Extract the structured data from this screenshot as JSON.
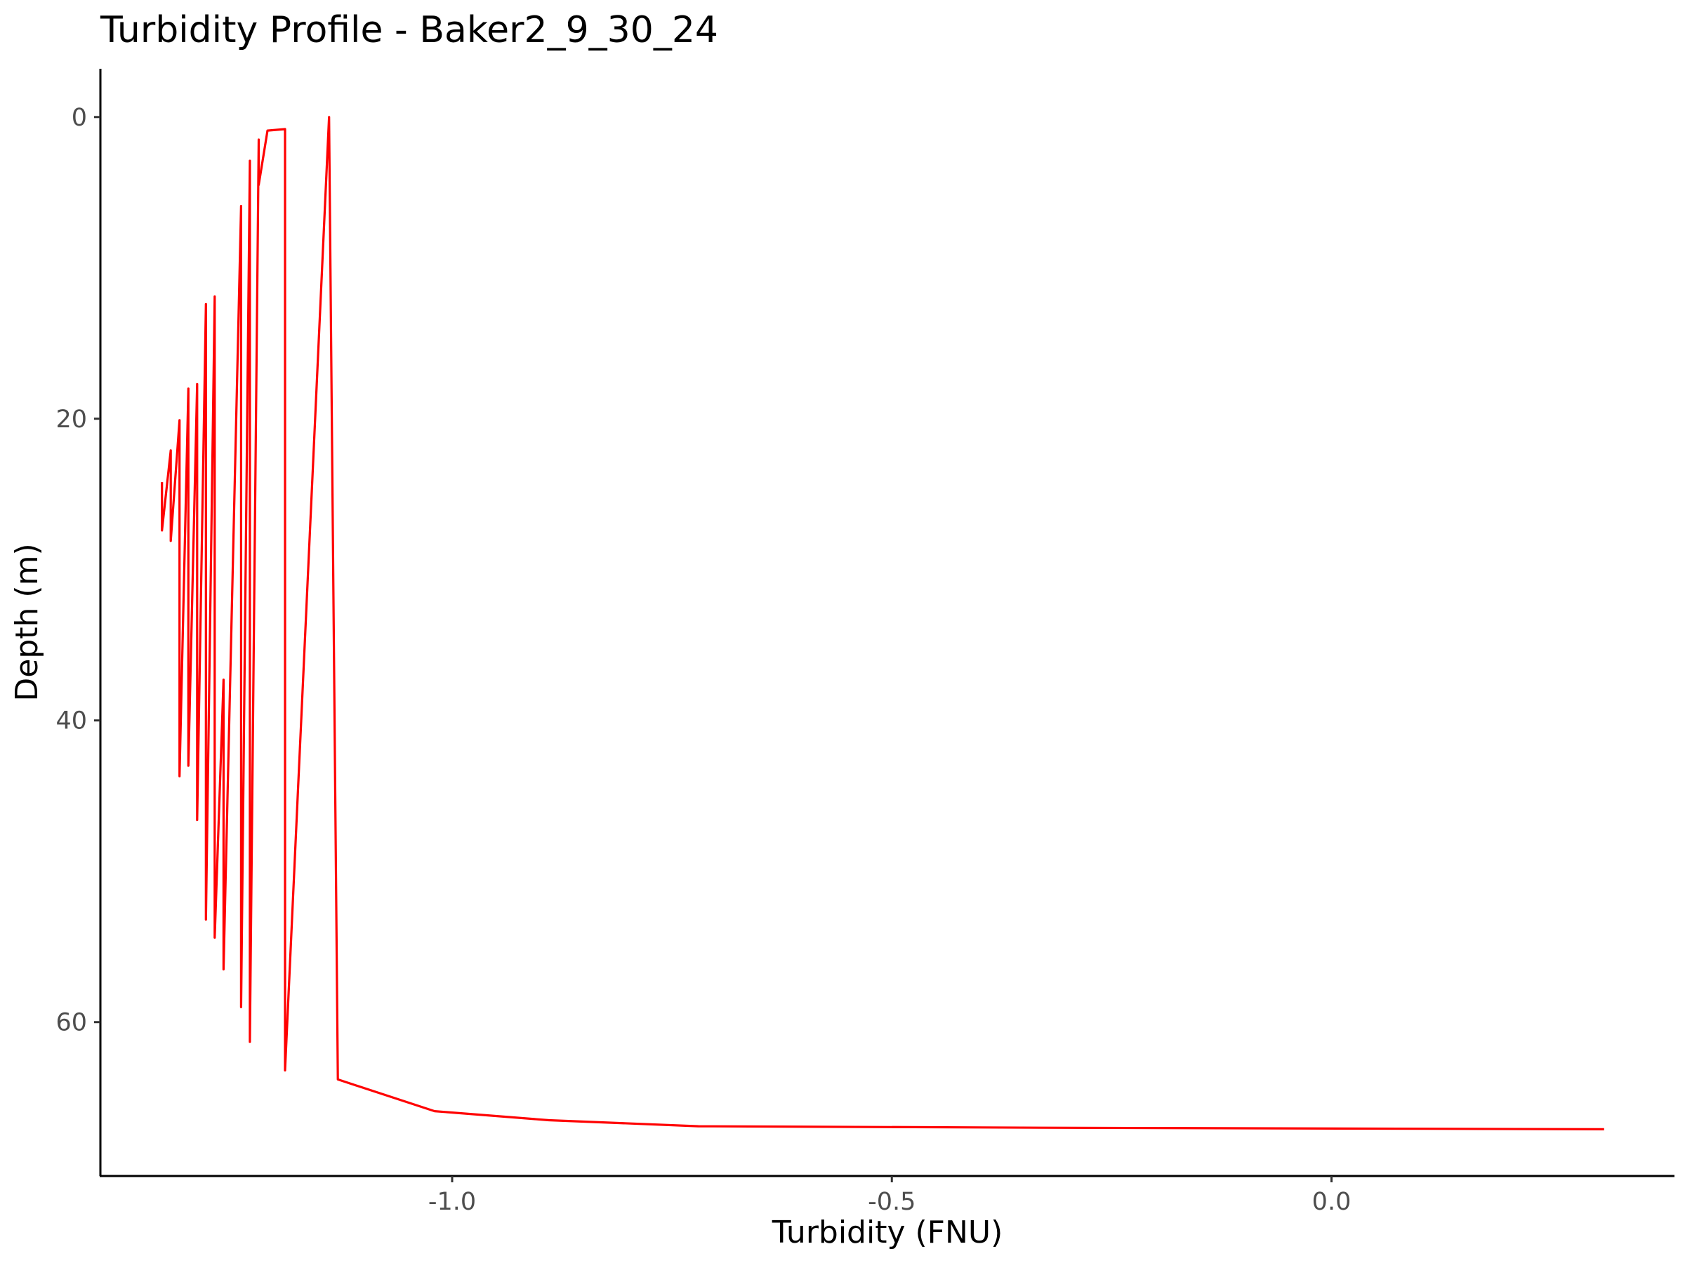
{
  "chart_data": {
    "type": "line",
    "title": "Turbidity Profile - Baker2_9_30_24",
    "xlabel": "Turbidity (FNU)",
    "ylabel": "Depth (m)",
    "xlim": [
      -1.4,
      0.39
    ],
    "ylim": [
      -3.2,
      70.2
    ],
    "y_reversed": true,
    "grid": false,
    "x_ticks": [
      {
        "value": -1.0,
        "label": "-1.0"
      },
      {
        "value": -0.5,
        "label": "-0.5"
      },
      {
        "value": 0.0,
        "label": "0.0"
      }
    ],
    "y_ticks": [
      {
        "value": 0,
        "label": "0"
      },
      {
        "value": 20,
        "label": "20"
      },
      {
        "value": 40,
        "label": "40"
      },
      {
        "value": 60,
        "label": "60"
      }
    ],
    "series": [
      {
        "color": "#ff0000",
        "points": [
          [
            -1.33,
            24.2
          ],
          [
            -1.33,
            27.4
          ],
          [
            -1.32,
            22.1
          ],
          [
            -1.32,
            28.1
          ],
          [
            -1.31,
            20.1
          ],
          [
            -1.31,
            43.7
          ],
          [
            -1.3,
            18.0
          ],
          [
            -1.3,
            43.0
          ],
          [
            -1.29,
            17.7
          ],
          [
            -1.29,
            46.6
          ],
          [
            -1.28,
            12.4
          ],
          [
            -1.28,
            53.2
          ],
          [
            -1.27,
            11.9
          ],
          [
            -1.27,
            54.4
          ],
          [
            -1.26,
            37.3
          ],
          [
            -1.26,
            56.5
          ],
          [
            -1.24,
            5.9
          ],
          [
            -1.24,
            59.0
          ],
          [
            -1.23,
            2.9
          ],
          [
            -1.23,
            61.3
          ],
          [
            -1.22,
            1.5
          ],
          [
            -1.22,
            4.5
          ],
          [
            -1.21,
            0.9
          ],
          [
            -1.19,
            0.8
          ],
          [
            -1.19,
            63.2
          ],
          [
            -1.14,
            0.0
          ],
          [
            -1.13,
            63.8
          ],
          [
            -1.02,
            65.9
          ],
          [
            -0.89,
            66.5
          ],
          [
            -0.72,
            66.9
          ],
          [
            -0.33,
            67.0
          ],
          [
            0.31,
            67.1
          ]
        ]
      }
    ]
  },
  "colors": {
    "line": "#ff0000",
    "axis": "#000000",
    "tick_label": "#4d4d4d",
    "background": "#ffffff"
  }
}
